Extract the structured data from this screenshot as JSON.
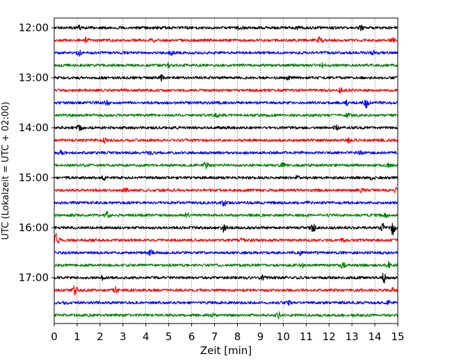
{
  "chart_data": {
    "type": "line",
    "xlabel": "Zeit  [min]",
    "ylabel": "UTC (Lokalzeit = UTC + 02:00)",
    "xlim": [
      0,
      15
    ],
    "x_ticks": [
      "0",
      "1",
      "2",
      "3",
      "4",
      "5",
      "6",
      "7",
      "8",
      "9",
      "10",
      "11",
      "12",
      "13",
      "14",
      "15"
    ],
    "y_ticks": [
      {
        "label": "12:00",
        "row": 0
      },
      {
        "label": "13:00",
        "row": 4
      },
      {
        "label": "14:00",
        "row": 8
      },
      {
        "label": "15:00",
        "row": 12
      },
      {
        "label": "16:00",
        "row": 16
      },
      {
        "label": "17:00",
        "row": 20
      }
    ],
    "grid": "vertical dotted at each minute",
    "trace_colors": [
      "#000000",
      "#ff0000",
      "#0000ff",
      "#008000"
    ],
    "rows_per_hour": 4,
    "minutes_per_row": 15,
    "series": [
      {
        "start": "12:00",
        "events": [
          {
            "t": 1.1,
            "a": 0.5
          },
          {
            "t": 8.1,
            "a": 0.4
          },
          {
            "t": 10.6,
            "a": 0.4
          },
          {
            "t": 13.4,
            "a": 0.6
          }
        ]
      },
      {
        "start": "12:15",
        "events": [
          {
            "t": 1.4,
            "a": 0.8
          },
          {
            "t": 4.3,
            "a": 0.4
          },
          {
            "t": 11.6,
            "a": 0.9
          },
          {
            "t": 14.8,
            "a": 0.5
          }
        ]
      },
      {
        "start": "12:30",
        "events": [
          {
            "t": 1.1,
            "a": 0.7
          },
          {
            "t": 5.1,
            "a": 0.5
          },
          {
            "t": 13.9,
            "a": 0.6
          }
        ]
      },
      {
        "start": "12:45",
        "events": [
          {
            "t": 5.0,
            "a": 0.6
          },
          {
            "t": 11.7,
            "a": 0.5
          }
        ]
      },
      {
        "start": "13:00",
        "events": [
          {
            "t": 4.7,
            "a": 0.8
          },
          {
            "t": 10.2,
            "a": 0.4
          }
        ]
      },
      {
        "start": "13:15",
        "events": [
          {
            "t": 3.0,
            "a": 0.4
          },
          {
            "t": 12.5,
            "a": 0.6
          }
        ]
      },
      {
        "start": "13:30",
        "events": [
          {
            "t": 2.3,
            "a": 0.6
          },
          {
            "t": 12.8,
            "a": 0.7
          },
          {
            "t": 13.6,
            "a": 1.6
          }
        ]
      },
      {
        "start": "13:45",
        "events": [
          {
            "t": 7.1,
            "a": 0.4
          },
          {
            "t": 12.8,
            "a": 0.5
          }
        ]
      },
      {
        "start": "14:00",
        "events": [
          {
            "t": 1.1,
            "a": 0.8
          },
          {
            "t": 12.3,
            "a": 0.6
          }
        ]
      },
      {
        "start": "14:15",
        "events": [
          {
            "t": 2.2,
            "a": 0.5
          },
          {
            "t": 12.9,
            "a": 0.7
          }
        ]
      },
      {
        "start": "14:30",
        "events": [
          {
            "t": 0.3,
            "a": 0.4
          },
          {
            "t": 4.2,
            "a": 0.6
          },
          {
            "t": 13.4,
            "a": 0.4
          }
        ]
      },
      {
        "start": "14:45",
        "events": [
          {
            "t": 6.6,
            "a": 1.3
          },
          {
            "t": 10.0,
            "a": 0.6
          },
          {
            "t": 14.6,
            "a": 0.5
          }
        ]
      },
      {
        "start": "15:00",
        "events": [
          {
            "t": 2.2,
            "a": 0.5
          },
          {
            "t": 10.6,
            "a": 0.5
          },
          {
            "t": 13.9,
            "a": 0.5
          }
        ]
      },
      {
        "start": "15:15",
        "events": [
          {
            "t": 3.1,
            "a": 0.6
          },
          {
            "t": 13.4,
            "a": 0.8
          },
          {
            "t": 14.9,
            "a": 0.6
          }
        ]
      },
      {
        "start": "15:30",
        "events": [
          {
            "t": 7.4,
            "a": 0.9
          },
          {
            "t": 11.1,
            "a": 0.4
          }
        ]
      },
      {
        "start": "15:45",
        "events": [
          {
            "t": 2.3,
            "a": 1.0
          },
          {
            "t": 5.8,
            "a": 0.5
          },
          {
            "t": 14.5,
            "a": 0.6
          }
        ]
      },
      {
        "start": "16:00",
        "events": [
          {
            "t": 7.4,
            "a": 1.1
          },
          {
            "t": 11.3,
            "a": 1.1
          },
          {
            "t": 14.3,
            "a": 2.0
          },
          {
            "t": 14.8,
            "a": 2.4
          }
        ]
      },
      {
        "start": "16:15",
        "events": [
          {
            "t": 0.1,
            "a": 2.0
          },
          {
            "t": 8.2,
            "a": 0.5
          },
          {
            "t": 12.6,
            "a": 0.6
          }
        ]
      },
      {
        "start": "16:30",
        "events": [
          {
            "t": 4.2,
            "a": 0.6
          },
          {
            "t": 10.7,
            "a": 0.7
          }
        ]
      },
      {
        "start": "16:45",
        "events": [
          {
            "t": 10.8,
            "a": 0.8
          },
          {
            "t": 12.6,
            "a": 0.8
          },
          {
            "t": 14.6,
            "a": 0.8
          }
        ]
      },
      {
        "start": "17:00",
        "events": [
          {
            "t": 2.1,
            "a": 0.6
          },
          {
            "t": 9.1,
            "a": 0.6
          },
          {
            "t": 14.4,
            "a": 1.4
          }
        ]
      },
      {
        "start": "17:15",
        "events": [
          {
            "t": 0.9,
            "a": 1.2
          },
          {
            "t": 2.7,
            "a": 1.0
          },
          {
            "t": 14.8,
            "a": 0.5
          }
        ]
      },
      {
        "start": "17:30",
        "events": [
          {
            "t": 0.5,
            "a": 0.7
          },
          {
            "t": 10.2,
            "a": 0.7
          },
          {
            "t": 14.6,
            "a": 0.5
          }
        ]
      },
      {
        "start": "17:45",
        "events": [
          {
            "t": 7.0,
            "a": 0.5
          },
          {
            "t": 9.8,
            "a": 0.8
          }
        ]
      }
    ]
  }
}
